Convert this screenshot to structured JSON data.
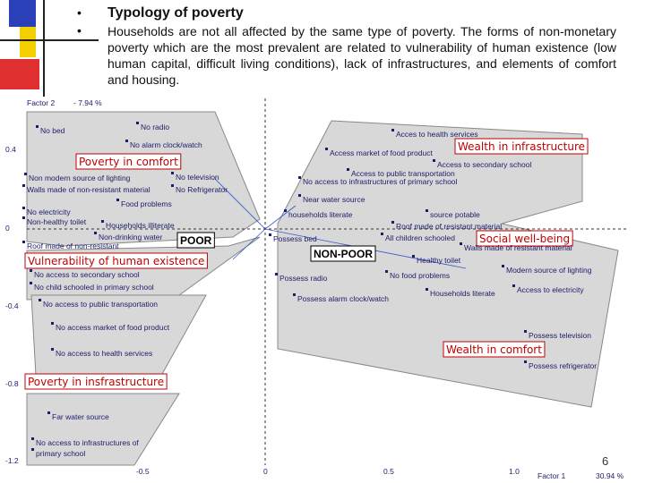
{
  "slide": {
    "title": "Typology of poverty",
    "bullet": "Households are not all affected by the same type of poverty. The forms of non-monetary poverty which are the most prevalent are related to vulnerability of human existence (low human capital, difficult living conditions), lack of infrastructures, and elements of comfort and housing.",
    "page_number": "6"
  },
  "plot": {
    "y_axis_label": "Factor 2",
    "y_axis_percent": "- 7.94 %",
    "x_axis_label": "Factor 1",
    "x_axis_percent": "30.94 %",
    "y_ticks": [
      "0.4",
      "0",
      "-0.4",
      "-0.8",
      "-1.2"
    ],
    "x_ticks": [
      "-0.5",
      "0",
      "0.5",
      "1.0"
    ],
    "groups": [
      "Poverty in comfort",
      "Wealth in infrastructure",
      "POOR",
      "Vulnerability of human existence",
      "Social well-being",
      "NON-POOR",
      "Wealth in comfort",
      "Poverty in insfrastructure"
    ],
    "items": [
      "No bed",
      "No radio",
      "No alarm clock/watch",
      "Non modern source of lighting",
      "No television",
      "Walls made of non-resistant material",
      "No Refrigerator",
      "Food problems",
      "No electricity",
      "Non-healthy toilet",
      "Households illiterate",
      "Non-drinking water",
      "Roof made of non-resistant",
      "No access to secondary school",
      "No child schooled in primary school",
      "No access to public transportation",
      "No access market of food product",
      "No access to health services",
      "Far water source",
      "No access to infrastructures of",
      "primary school",
      "Acces to health services",
      "Access market of food product",
      "Access to secondary school",
      "Access to public transportation",
      "No access to infrastructures of primary school",
      "Near water source",
      "households literate",
      "source potable",
      "Roof made of resistant material",
      "Possess bed",
      "All children schooled",
      "Walls made of resistant material",
      "Healthy toilet",
      "Modern source of lighting",
      "Possess radio",
      "No food problems",
      "Access to electricity",
      "Households literate",
      "Possess alarm clock/watch",
      "Possess television",
      "Possess refrigerator"
    ]
  }
}
